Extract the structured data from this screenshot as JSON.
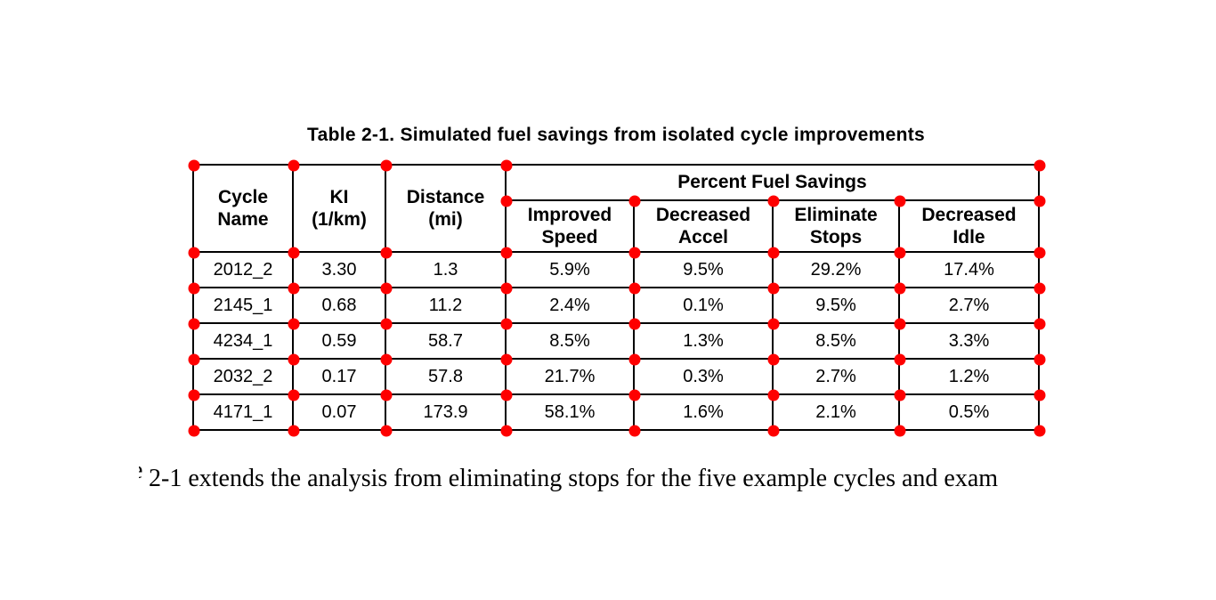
{
  "title": "Table 2-1. Simulated fuel savings from isolated cycle improvements",
  "table": {
    "group_header": "Percent Fuel Savings",
    "headers": [
      "Cycle\nName",
      "KI\n(1/km)",
      "Distance\n(mi)",
      "Improved\nSpeed",
      "Decreased\nAccel",
      "Eliminate\nStops",
      "Decreased\nIdle"
    ],
    "rows": [
      [
        "2012_2",
        "3.30",
        "1.3",
        "5.9%",
        "9.5%",
        "29.2%",
        "17.4%"
      ],
      [
        "2145_1",
        "0.68",
        "11.2",
        "2.4%",
        "0.1%",
        "9.5%",
        "2.7%"
      ],
      [
        "4234_1",
        "0.59",
        "58.7",
        "8.5%",
        "1.3%",
        "8.5%",
        "3.3%"
      ],
      [
        "2032_2",
        "0.17",
        "57.8",
        "21.7%",
        "0.3%",
        "2.7%",
        "1.2%"
      ],
      [
        "4171_1",
        "0.07",
        "173.9",
        "58.1%",
        "1.6%",
        "2.1%",
        "0.5%"
      ]
    ]
  },
  "annotations": {
    "corner_marker_color": "#fe0000",
    "corner_marker_diameter": 13
  },
  "body_text": {
    "clipped_glyph": "e",
    "line": "2-1 extends the analysis from eliminating stops for the five example cycles and exam"
  }
}
